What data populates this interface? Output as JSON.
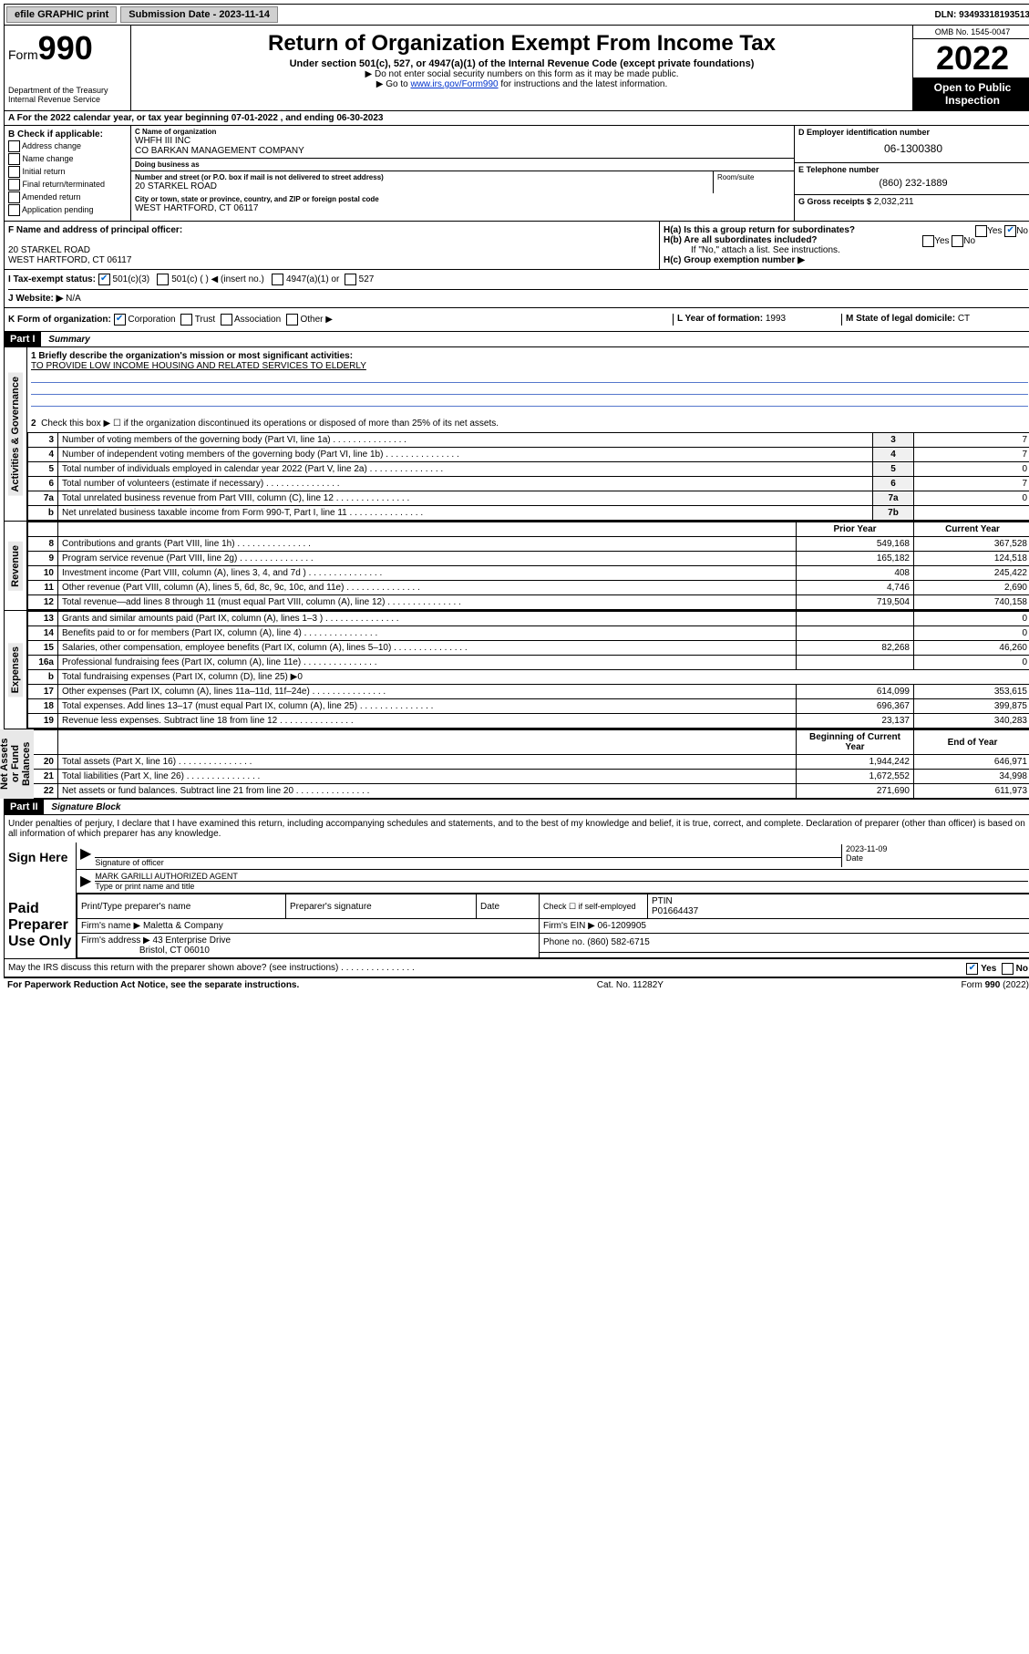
{
  "top": {
    "efile": "efile GRAPHIC print",
    "sub_label": "Submission Date - 2023-11-14",
    "dln": "DLN: 93493318193513"
  },
  "header": {
    "form_prefix": "Form",
    "form_num": "990",
    "title": "Return of Organization Exempt From Income Tax",
    "subtitle": "Under section 501(c), 527, or 4947(a)(1) of the Internal Revenue Code (except private foundations)",
    "note1": "▶ Do not enter social security numbers on this form as it may be made public.",
    "note2_pre": "▶ Go to ",
    "note2_link": "www.irs.gov/Form990",
    "note2_post": " for instructions and the latest information.",
    "dept": "Department of the Treasury\nInternal Revenue Service",
    "omb": "OMB No. 1545-0047",
    "year": "2022",
    "inspection": "Open to Public Inspection"
  },
  "row_a": {
    "text": "A For the 2022 calendar year, or tax year beginning 07-01-2022    , and ending 06-30-2023"
  },
  "col_b": {
    "header": "B Check if applicable:",
    "items": [
      "Address change",
      "Name change",
      "Initial return",
      "Final return/terminated",
      "Amended return",
      "Application pending"
    ]
  },
  "col_c": {
    "name_label": "C Name of organization",
    "name1": "WHFH III INC",
    "name2": "CO BARKAN MANAGEMENT COMPANY",
    "dba_label": "Doing business as",
    "dba": "",
    "addr_label": "Number and street (or P.O. box if mail is not delivered to street address)",
    "room_label": "Room/suite",
    "addr": "20 STARKEL ROAD",
    "city_label": "City or town, state or province, country, and ZIP or foreign postal code",
    "city": "WEST HARTFORD, CT  06117"
  },
  "col_d": {
    "ein_label": "D Employer identification number",
    "ein": "06-1300380",
    "phone_label": "E Telephone number",
    "phone": "(860) 232-1889",
    "gross_label": "G Gross receipts $",
    "gross": "2,032,211"
  },
  "section_f": {
    "label": "F Name and address of principal officer:",
    "line1": "",
    "line2": "20 STARKEL ROAD",
    "line3": "WEST HARTFORD, CT  06117"
  },
  "section_h": {
    "ha": "H(a)  Is this a group return for subordinates?",
    "ha_yes": "Yes",
    "ha_no": "No",
    "hb": "H(b)  Are all subordinates included?",
    "hb_yes": "Yes",
    "hb_no": "No",
    "hb_note": "If \"No,\" attach a list. See instructions.",
    "hc": "H(c)  Group exemption number ▶"
  },
  "row_i": {
    "label": "I  Tax-exempt status:",
    "opt1": "501(c)(3)",
    "opt2": "501(c) (   ) ◀ (insert no.)",
    "opt3": "4947(a)(1) or",
    "opt4": "527"
  },
  "row_j": {
    "label": "J  Website: ▶",
    "value": "N/A"
  },
  "row_k": {
    "label": "K Form of organization:",
    "opts": [
      "Corporation",
      "Trust",
      "Association",
      "Other ▶"
    ],
    "l_label": "L Year of formation:",
    "l_val": "1993",
    "m_label": "M State of legal domicile:",
    "m_val": "CT"
  },
  "part1": {
    "header": "Part I",
    "title": "Summary",
    "q1_label": "1  Briefly describe the organization's mission or most significant activities:",
    "q1_text": "TO PROVIDE LOW INCOME HOUSING AND RELATED SERVICES TO ELDERLY",
    "q2": "Check this box ▶ ☐  if the organization discontinued its operations or disposed of more than 25% of its net assets.",
    "governance_rows": [
      {
        "n": "3",
        "d": "Number of voting members of the governing body (Part VI, line 1a)",
        "box": "3",
        "v": "7"
      },
      {
        "n": "4",
        "d": "Number of independent voting members of the governing body (Part VI, line 1b)",
        "box": "4",
        "v": "7"
      },
      {
        "n": "5",
        "d": "Total number of individuals employed in calendar year 2022 (Part V, line 2a)",
        "box": "5",
        "v": "0"
      },
      {
        "n": "6",
        "d": "Total number of volunteers (estimate if necessary)",
        "box": "6",
        "v": "7"
      },
      {
        "n": "7a",
        "d": "Total unrelated business revenue from Part VIII, column (C), line 12",
        "box": "7a",
        "v": "0"
      },
      {
        "n": "b",
        "d": "Net unrelated business taxable income from Form 990-T, Part I, line 11",
        "box": "7b",
        "v": ""
      }
    ],
    "prior_label": "Prior Year",
    "current_label": "Current Year",
    "revenue_rows": [
      {
        "n": "8",
        "d": "Contributions and grants (Part VIII, line 1h)",
        "p": "549,168",
        "c": "367,528"
      },
      {
        "n": "9",
        "d": "Program service revenue (Part VIII, line 2g)",
        "p": "165,182",
        "c": "124,518"
      },
      {
        "n": "10",
        "d": "Investment income (Part VIII, column (A), lines 3, 4, and 7d )",
        "p": "408",
        "c": "245,422"
      },
      {
        "n": "11",
        "d": "Other revenue (Part VIII, column (A), lines 5, 6d, 8c, 9c, 10c, and 11e)",
        "p": "4,746",
        "c": "2,690"
      },
      {
        "n": "12",
        "d": "Total revenue—add lines 8 through 11 (must equal Part VIII, column (A), line 12)",
        "p": "719,504",
        "c": "740,158"
      }
    ],
    "expense_rows": [
      {
        "n": "13",
        "d": "Grants and similar amounts paid (Part IX, column (A), lines 1–3 )",
        "p": "",
        "c": "0"
      },
      {
        "n": "14",
        "d": "Benefits paid to or for members (Part IX, column (A), line 4)",
        "p": "",
        "c": "0"
      },
      {
        "n": "15",
        "d": "Salaries, other compensation, employee benefits (Part IX, column (A), lines 5–10)",
        "p": "82,268",
        "c": "46,260"
      },
      {
        "n": "16a",
        "d": "Professional fundraising fees (Part IX, column (A), line 11e)",
        "p": "",
        "c": "0"
      },
      {
        "n": "b",
        "d": "Total fundraising expenses (Part IX, column (D), line 25) ▶0",
        "p": "—",
        "c": "—"
      },
      {
        "n": "17",
        "d": "Other expenses (Part IX, column (A), lines 11a–11d, 11f–24e)",
        "p": "614,099",
        "c": "353,615"
      },
      {
        "n": "18",
        "d": "Total expenses. Add lines 13–17 (must equal Part IX, column (A), line 25)",
        "p": "696,367",
        "c": "399,875"
      },
      {
        "n": "19",
        "d": "Revenue less expenses. Subtract line 18 from line 12",
        "p": "23,137",
        "c": "340,283"
      }
    ],
    "begin_label": "Beginning of Current Year",
    "end_label": "End of Year",
    "net_rows": [
      {
        "n": "20",
        "d": "Total assets (Part X, line 16)",
        "p": "1,944,242",
        "c": "646,971"
      },
      {
        "n": "21",
        "d": "Total liabilities (Part X, line 26)",
        "p": "1,672,552",
        "c": "34,998"
      },
      {
        "n": "22",
        "d": "Net assets or fund balances. Subtract line 21 from line 20",
        "p": "271,690",
        "c": "611,973"
      }
    ],
    "vlabels": {
      "gov": "Activities & Governance",
      "rev": "Revenue",
      "exp": "Expenses",
      "net": "Net Assets or Fund Balances"
    }
  },
  "part2": {
    "header": "Part II",
    "title": "Signature Block",
    "decl": "Under penalties of perjury, I declare that I have examined this return, including accompanying schedules and statements, and to the best of my knowledge and belief, it is true, correct, and complete. Declaration of preparer (other than officer) is based on all information of which preparer has any knowledge.",
    "sign_here": "Sign Here",
    "sig_officer": "Signature of officer",
    "sig_date": "Date",
    "sig_date_val": "2023-11-09",
    "name_title": "MARK GARILLI AUTHORIZED AGENT",
    "name_title_label": "Type or print name and title",
    "paid": "Paid Preparer Use Only",
    "prep_name_label": "Print/Type preparer's name",
    "prep_sig_label": "Preparer's signature",
    "date_label": "Date",
    "check_label": "Check ☐ if self-employed",
    "ptin_label": "PTIN",
    "ptin": "P01664437",
    "firm_name_label": "Firm's name    ▶",
    "firm_name": "Maletta & Company",
    "firm_ein_label": "Firm's EIN ▶",
    "firm_ein": "06-1209905",
    "firm_addr_label": "Firm's address ▶",
    "firm_addr1": "43 Enterprise Drive",
    "firm_addr2": "Bristol, CT  06010",
    "firm_phone_label": "Phone no.",
    "firm_phone": "(860) 582-6715",
    "discuss": "May the IRS discuss this return with the preparer shown above? (see instructions)",
    "discuss_yes": "Yes",
    "discuss_no": "No"
  },
  "footer": {
    "left": "For Paperwork Reduction Act Notice, see the separate instructions.",
    "mid": "Cat. No. 11282Y",
    "right": "Form 990 (2022)"
  },
  "colors": {
    "link": "#0033cc",
    "check": "#0066cc",
    "rule": "#5577cc"
  }
}
